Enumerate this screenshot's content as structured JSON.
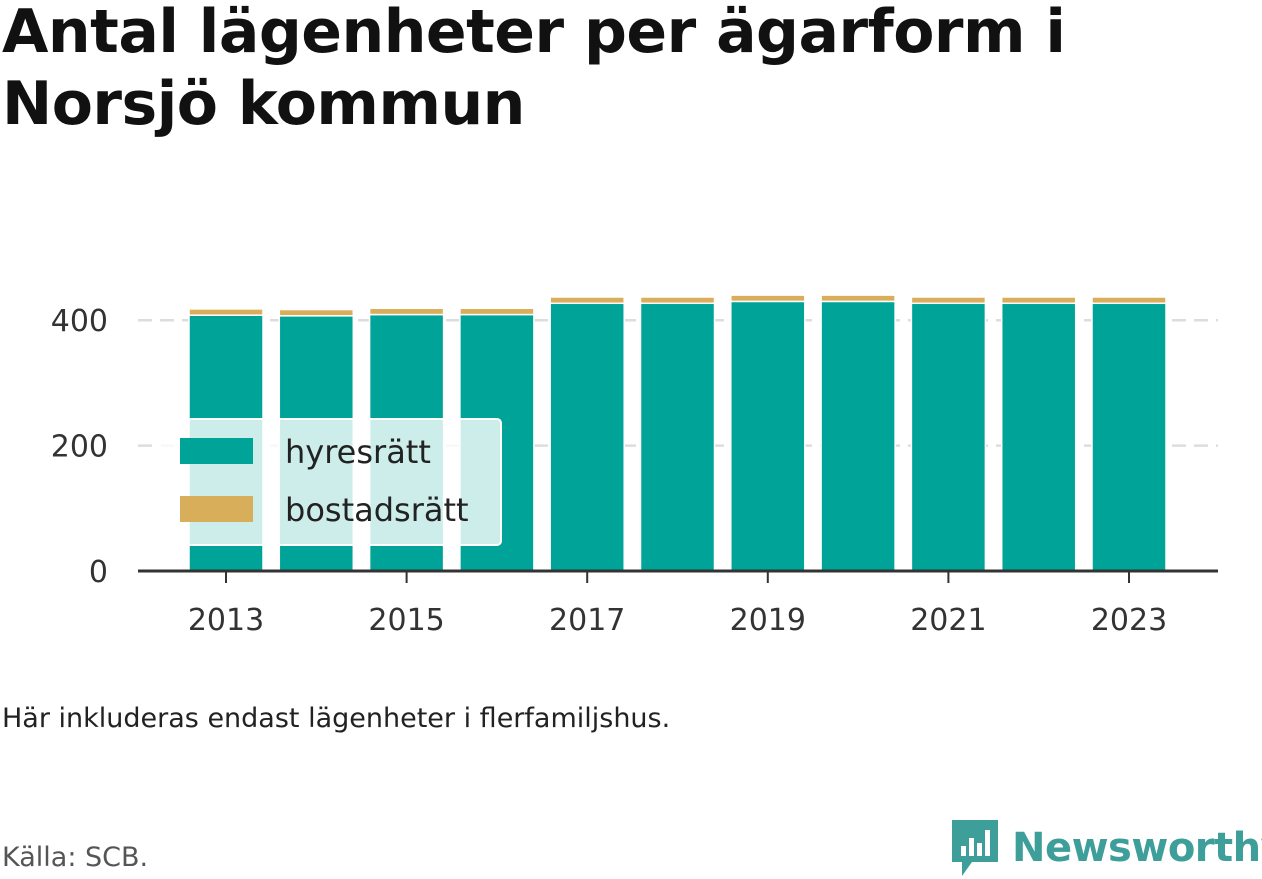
{
  "title": "Antal lägenheter per ägarform i Norsjö kommun",
  "note": "Här inkluderas endast lägenheter i flerfamiljshus.",
  "source": "Källa: SCB.",
  "brand": {
    "name": "Newsworthy",
    "color": "#3d9e9a",
    "icon": "newsworthy-logo-icon"
  },
  "chart_data": {
    "type": "bar",
    "stacked": true,
    "categories": [
      "2013",
      "2014",
      "2015",
      "2016",
      "2017",
      "2018",
      "2019",
      "2020",
      "2021",
      "2022",
      "2023"
    ],
    "series": [
      {
        "name": "hyresrätt",
        "color": "#00a398",
        "values": [
          408,
          407,
          409,
          409,
          427,
          427,
          430,
          430,
          427,
          427,
          427
        ]
      },
      {
        "name": "bostadsrätt",
        "color": "#d9ae5b",
        "values": [
          10,
          10,
          10,
          10,
          10,
          10,
          10,
          10,
          10,
          10,
          10
        ]
      }
    ],
    "x_tick_labels": [
      "2013",
      "2015",
      "2017",
      "2019",
      "2021",
      "2023"
    ],
    "y_ticks": [
      0,
      200,
      400
    ],
    "ylim": [
      0,
      450
    ],
    "grid": true,
    "legend_position": "bottom-left"
  }
}
